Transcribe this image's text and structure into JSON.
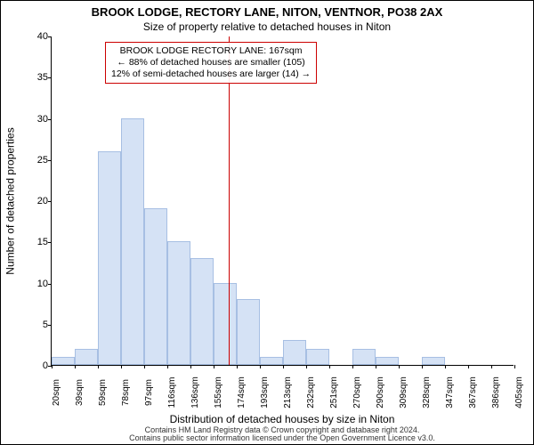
{
  "title": "BROOK LODGE, RECTORY LANE, NITON, VENTNOR, PO38 2AX",
  "subtitle": "Size of property relative to detached houses in Niton",
  "xlabel": "Distribution of detached houses by size in Niton",
  "ylabel": "Number of detached properties",
  "footer_line1": "Contains HM Land Registry data © Crown copyright and database right 2024.",
  "footer_line2": "Contains public sector information licensed under the Open Government Licence v3.0.",
  "chart": {
    "type": "histogram",
    "background_color": "#ffffff",
    "bar_fill": "#d5e2f5",
    "bar_border": "#a7bfe3",
    "bar_border_width": 1,
    "bar_width_ratio": 1.0,
    "axis_color": "#000000",
    "font_family": "Arial",
    "title_fontsize": 13,
    "subtitle_fontsize": 12,
    "label_fontsize": 12,
    "tick_fontsize": 10,
    "ylim": [
      0,
      40
    ],
    "ytick_step": 5,
    "x_tick_labels": [
      "20sqm",
      "39sqm",
      "59sqm",
      "78sqm",
      "97sqm",
      "116sqm",
      "136sqm",
      "155sqm",
      "174sqm",
      "193sqm",
      "213sqm",
      "232sqm",
      "251sqm",
      "270sqm",
      "290sqm",
      "309sqm",
      "328sqm",
      "347sqm",
      "367sqm",
      "386sqm",
      "405sqm"
    ],
    "values": [
      1,
      2,
      26,
      30,
      19,
      15,
      13,
      10,
      8,
      1,
      3,
      2,
      0,
      2,
      1,
      0,
      1,
      0,
      0,
      0
    ],
    "reference_line": {
      "x_label_after_index": 8,
      "color": "#cc0000",
      "width": 1
    },
    "annotation": {
      "line1": "BROOK LODGE RECTORY LANE: 167sqm",
      "line2": "← 88% of detached houses are smaller (105)",
      "line3": "12% of semi-detached houses are larger (14) →",
      "border_color": "#cc0000",
      "border_width": 1,
      "fontsize": 10.5,
      "position": "top-center-left"
    }
  }
}
